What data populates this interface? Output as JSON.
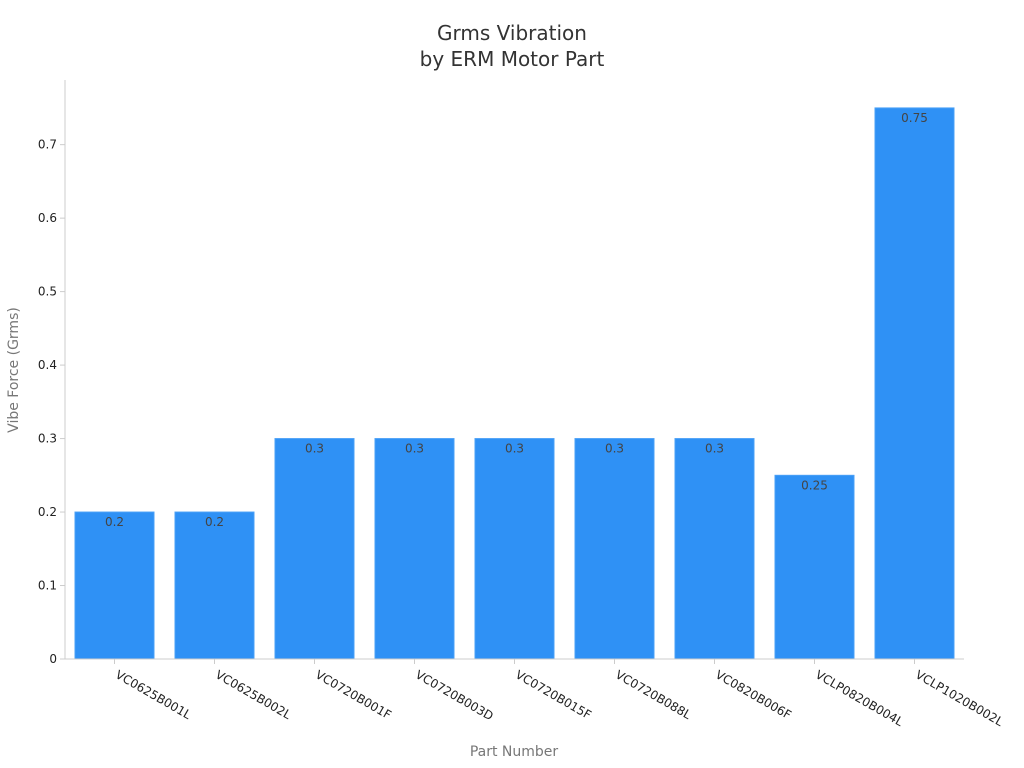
{
  "chart_data": {
    "type": "bar",
    "title_line1": "Grms Vibration",
    "title_line2": "by ERM Motor Part",
    "xlabel": "Part Number",
    "ylabel": "Vibe Force (Grms)",
    "categories": [
      "VC0625B001L",
      "VC0625B002L",
      "VC0720B001F",
      "VC0720B003D",
      "VC0720B015F",
      "VC0720B088L",
      "VC0820B006F",
      "VCLP0820B004L",
      "VCLP1020B002L"
    ],
    "values": [
      0.2,
      0.2,
      0.3,
      0.3,
      0.3,
      0.3,
      0.3,
      0.25,
      0.75
    ],
    "value_labels": [
      "0.2",
      "0.2",
      "0.3",
      "0.3",
      "0.3",
      "0.3",
      "0.3",
      "0.25",
      "0.75"
    ],
    "y_ticks": [
      0,
      0.1,
      0.2,
      0.3,
      0.4,
      0.5,
      0.6,
      0.7
    ],
    "y_tick_labels": [
      "0",
      "0.1",
      "0.2",
      "0.3",
      "0.4",
      "0.5",
      "0.6",
      "0.7"
    ],
    "ylim": [
      0,
      0.788
    ],
    "grid": false,
    "legend": "none",
    "bar_color": "#2f91f5",
    "bar_edge_color": "#4aa0f7",
    "axis_color": "#cccccc"
  }
}
